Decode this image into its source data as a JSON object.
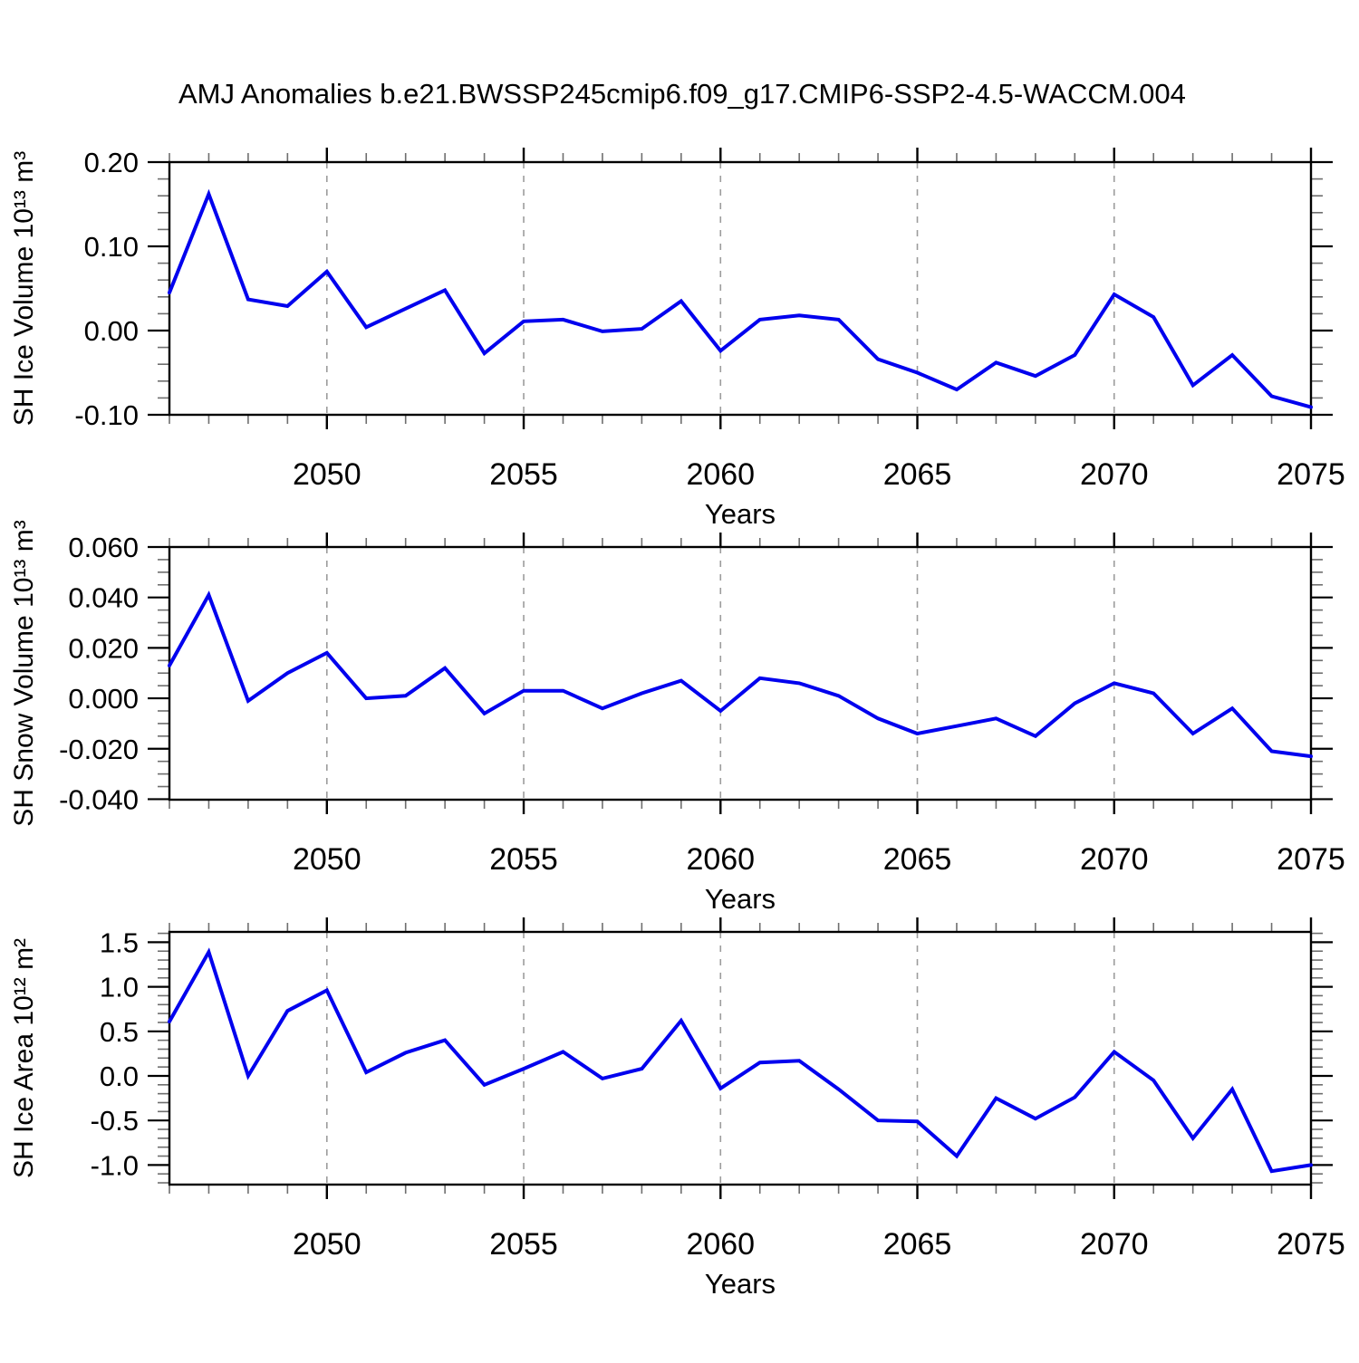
{
  "title": "AMJ Anomalies b.e21.BWSSP245cmip6.f09_g17.CMIP6-SSP2-4.5-WACCM.004",
  "colors": {
    "line": "#0000ee",
    "grid": "#9c9c9c",
    "axis": "#000000",
    "minor_tick": "#6e6e6e",
    "background": "#ffffff"
  },
  "chart_data": [
    {
      "type": "line",
      "name": "sh-ice-volume",
      "ylabel": "SH Ice Volume 10¹³ m³",
      "xlabel": "Years",
      "x": [
        2046,
        2047,
        2048,
        2049,
        2050,
        2051,
        2052,
        2053,
        2054,
        2055,
        2056,
        2057,
        2058,
        2059,
        2060,
        2061,
        2062,
        2063,
        2064,
        2065,
        2066,
        2067,
        2068,
        2069,
        2070,
        2071,
        2072,
        2073,
        2074,
        2075
      ],
      "values": [
        0.045,
        0.162,
        0.037,
        0.029,
        0.07,
        0.004,
        0.026,
        0.048,
        -0.027,
        0.011,
        0.013,
        -0.001,
        0.002,
        0.035,
        -0.024,
        0.013,
        0.018,
        0.013,
        -0.034,
        -0.05,
        -0.07,
        -0.038,
        -0.054,
        -0.029,
        0.043,
        0.016,
        -0.065,
        -0.029,
        -0.078,
        -0.091
      ],
      "xlim": [
        2046,
        2075
      ],
      "ylim": [
        -0.1,
        0.2
      ],
      "yticks_major": [
        0.2,
        0.1,
        0.0,
        -0.1
      ],
      "ytick_labels": [
        "0.20",
        "0.10",
        "0.00",
        "-0.10"
      ],
      "yminor_step": 0.02,
      "xticks_major": [
        2050,
        2055,
        2060,
        2065,
        2070,
        2075
      ],
      "xtick_labels": [
        "2050",
        "2055",
        "2060",
        "2065",
        "2070",
        "2075"
      ],
      "xminor_step": 1,
      "grid_x": [
        2050,
        2055,
        2060,
        2065,
        2070
      ],
      "grid_style": "vertical dashed"
    },
    {
      "type": "line",
      "name": "sh-snow-volume",
      "ylabel": "SH Snow Volume 10¹³ m³",
      "xlabel": "Years",
      "x": [
        2046,
        2047,
        2048,
        2049,
        2050,
        2051,
        2052,
        2053,
        2054,
        2055,
        2056,
        2057,
        2058,
        2059,
        2060,
        2061,
        2062,
        2063,
        2064,
        2065,
        2066,
        2067,
        2068,
        2069,
        2070,
        2071,
        2072,
        2073,
        2074,
        2075
      ],
      "values": [
        0.013,
        0.041,
        -0.001,
        0.01,
        0.018,
        0.0,
        0.001,
        0.012,
        -0.006,
        0.003,
        0.003,
        -0.004,
        0.002,
        0.007,
        -0.005,
        0.008,
        0.006,
        0.001,
        -0.008,
        -0.014,
        -0.011,
        -0.008,
        -0.015,
        -0.002,
        0.006,
        0.002,
        -0.014,
        -0.004,
        -0.021,
        -0.023
      ],
      "xlim": [
        2046,
        2075
      ],
      "ylim": [
        -0.0402,
        0.06
      ],
      "yticks_major": [
        0.06,
        0.04,
        0.02,
        0.0,
        -0.02,
        -0.04
      ],
      "ytick_labels": [
        "0.060",
        "0.040",
        "0.020",
        "0.000",
        "-0.020",
        "-0.040"
      ],
      "yminor_step": 0.005,
      "xticks_major": [
        2050,
        2055,
        2060,
        2065,
        2070,
        2075
      ],
      "xtick_labels": [
        "2050",
        "2055",
        "2060",
        "2065",
        "2070",
        "2075"
      ],
      "xminor_step": 1,
      "grid_x": [
        2050,
        2055,
        2060,
        2065,
        2070
      ],
      "grid_style": "vertical dashed"
    },
    {
      "type": "line",
      "name": "sh-ice-area",
      "ylabel": "SH Ice Area 10¹² m²",
      "xlabel": "Years",
      "x": [
        2046,
        2047,
        2048,
        2049,
        2050,
        2051,
        2052,
        2053,
        2054,
        2055,
        2056,
        2057,
        2058,
        2059,
        2060,
        2061,
        2062,
        2063,
        2064,
        2065,
        2066,
        2067,
        2068,
        2069,
        2070,
        2071,
        2072,
        2073,
        2074,
        2075
      ],
      "values": [
        0.61,
        1.39,
        0.0,
        0.73,
        0.96,
        0.04,
        0.26,
        0.4,
        -0.1,
        0.08,
        0.27,
        -0.03,
        0.08,
        0.62,
        -0.14,
        0.15,
        0.17,
        -0.15,
        -0.5,
        -0.51,
        -0.9,
        -0.25,
        -0.48,
        -0.24,
        0.27,
        -0.05,
        -0.7,
        -0.15,
        -1.07,
        -1.0
      ],
      "xlim": [
        2046,
        2075
      ],
      "ylim": [
        -1.22,
        1.616
      ],
      "yticks_major": [
        1.5,
        1.0,
        0.5,
        0.0,
        -0.5,
        -1.0
      ],
      "ytick_labels": [
        "1.5",
        "1.0",
        "0.5",
        "0.0",
        "-0.5",
        "-1.0"
      ],
      "yminor_step": 0.1,
      "xticks_major": [
        2050,
        2055,
        2060,
        2065,
        2070,
        2075
      ],
      "xtick_labels": [
        "2050",
        "2055",
        "2060",
        "2065",
        "2070",
        "2075"
      ],
      "xminor_step": 1,
      "grid_x": [
        2050,
        2055,
        2060,
        2065,
        2070
      ],
      "grid_style": "vertical dashed"
    }
  ]
}
